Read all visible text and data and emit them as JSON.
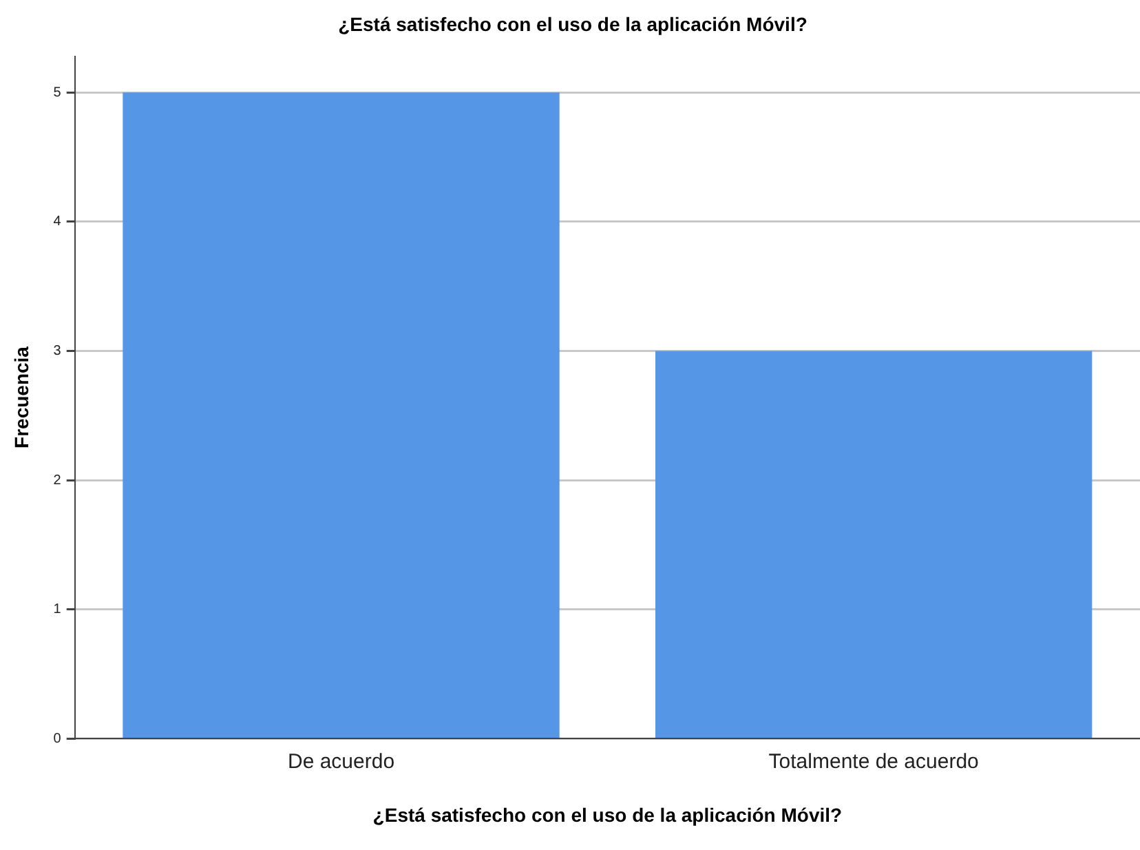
{
  "chart_data": {
    "type": "bar",
    "title": "¿Está satisfecho con el uso de la aplicación Móvil?",
    "xlabel": "¿Está satisfecho con el uso de la aplicación Móvil?",
    "ylabel": "Frecuencia",
    "categories": [
      "De acuerdo",
      "Totalmente de acuerdo"
    ],
    "values": [
      5,
      3
    ],
    "color": "#5596e6",
    "ylim": [
      0,
      5.28
    ],
    "yticks": [
      0,
      1,
      2,
      3,
      4,
      5
    ],
    "grid": "y",
    "legend": false
  }
}
